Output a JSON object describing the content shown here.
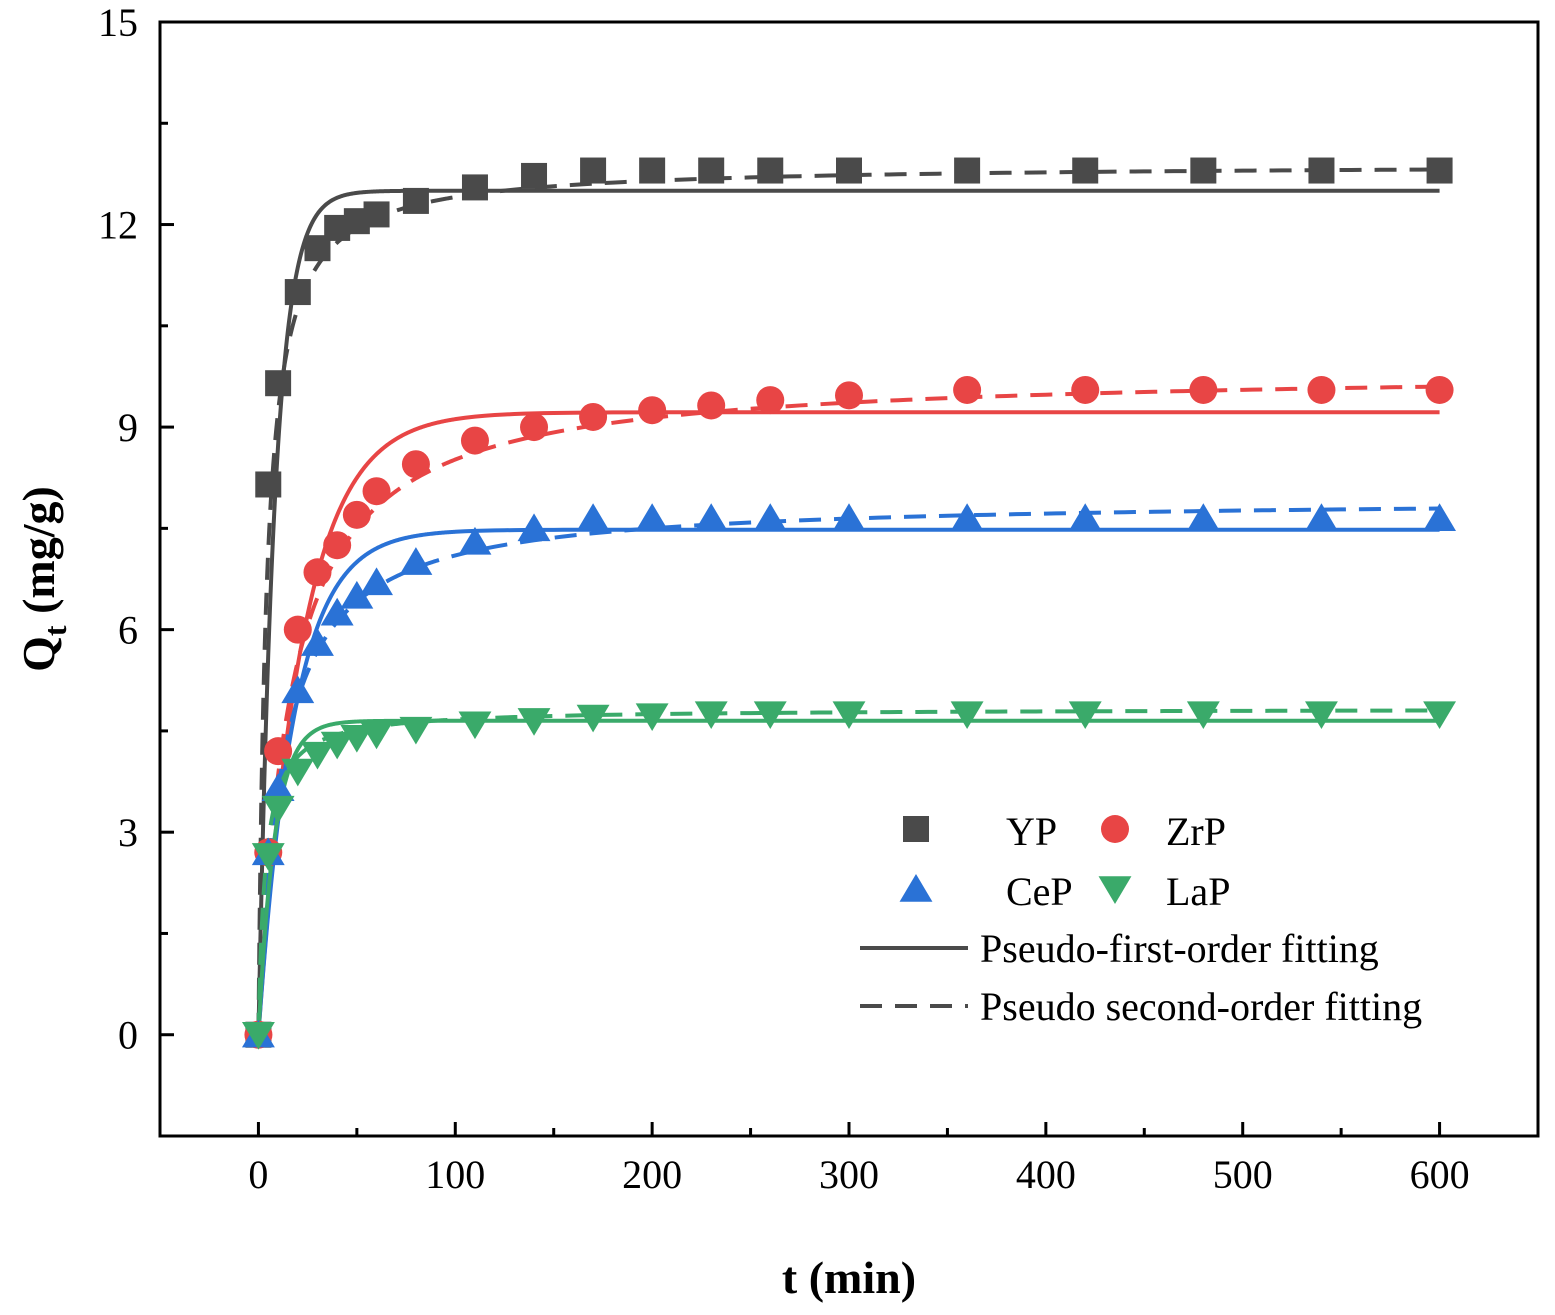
{
  "chart_data": {
    "type": "scatter",
    "title": "",
    "xlabel": "t (min)",
    "ylabel_main": "Q",
    "ylabel_sub": "t",
    "ylabel_unit": " (mg/g)",
    "xlim": [
      -50,
      650
    ],
    "ylim": [
      -1.5,
      15
    ],
    "xticks": [
      0,
      100,
      200,
      300,
      400,
      500,
      600
    ],
    "yticks": [
      0,
      3,
      6,
      9,
      12,
      15
    ],
    "x": [
      0,
      5,
      10,
      20,
      30,
      40,
      50,
      60,
      80,
      110,
      140,
      170,
      200,
      230,
      260,
      300,
      360,
      420,
      480,
      540,
      600
    ],
    "series": [
      {
        "name": "YP",
        "marker": "square",
        "color": "#4a4a4a",
        "values": [
          0,
          8.15,
          9.65,
          11.0,
          11.65,
          11.95,
          12.05,
          12.15,
          12.35,
          12.55,
          12.72,
          12.8,
          12.8,
          12.8,
          12.8,
          12.8,
          12.8,
          12.8,
          12.8,
          12.8,
          12.8
        ],
        "pfo": {
          "qe": 12.5,
          "k1": 0.12
        },
        "pso": {
          "qe": 12.9,
          "k2": 0.0195
        }
      },
      {
        "name": "ZrP",
        "marker": "circle",
        "color": "#e84545",
        "values": [
          0,
          2.7,
          4.2,
          6.0,
          6.85,
          7.25,
          7.7,
          8.05,
          8.45,
          8.8,
          9.0,
          9.15,
          9.25,
          9.32,
          9.4,
          9.47,
          9.55,
          9.55,
          9.55,
          9.55,
          9.55
        ],
        "pfo": {
          "qe": 9.22,
          "k1": 0.045
        },
        "pso": {
          "qe": 9.85,
          "k2": 0.0065
        }
      },
      {
        "name": "CeP",
        "marker": "triangle-up",
        "color": "#2a72d6",
        "values": [
          0,
          2.7,
          3.65,
          5.1,
          5.8,
          6.25,
          6.5,
          6.7,
          7.0,
          7.3,
          7.5,
          7.65,
          7.65,
          7.65,
          7.65,
          7.65,
          7.65,
          7.65,
          7.65,
          7.65,
          7.65
        ],
        "pfo": {
          "qe": 7.48,
          "k1": 0.055
        },
        "pso": {
          "qe": 7.95,
          "k2": 0.0105
        }
      },
      {
        "name": "LaP",
        "marker": "triangle-down",
        "color": "#3aaa6a",
        "values": [
          0,
          2.65,
          3.35,
          3.9,
          4.15,
          4.3,
          4.4,
          4.45,
          4.52,
          4.6,
          4.65,
          4.7,
          4.72,
          4.75,
          4.75,
          4.75,
          4.75,
          4.75,
          4.75,
          4.75,
          4.75
        ],
        "pfo": {
          "qe": 4.65,
          "k1": 0.12
        },
        "pso": {
          "qe": 4.83,
          "k2": 0.06
        }
      }
    ],
    "legend": {
      "placement": "bottom-right",
      "fit_line_color": "#4a4a4a",
      "fits": [
        {
          "name": "Pseudo-first-order fitting",
          "style": "solid"
        },
        {
          "name": "Pseudo second-order fitting",
          "style": "dashed"
        }
      ]
    }
  }
}
